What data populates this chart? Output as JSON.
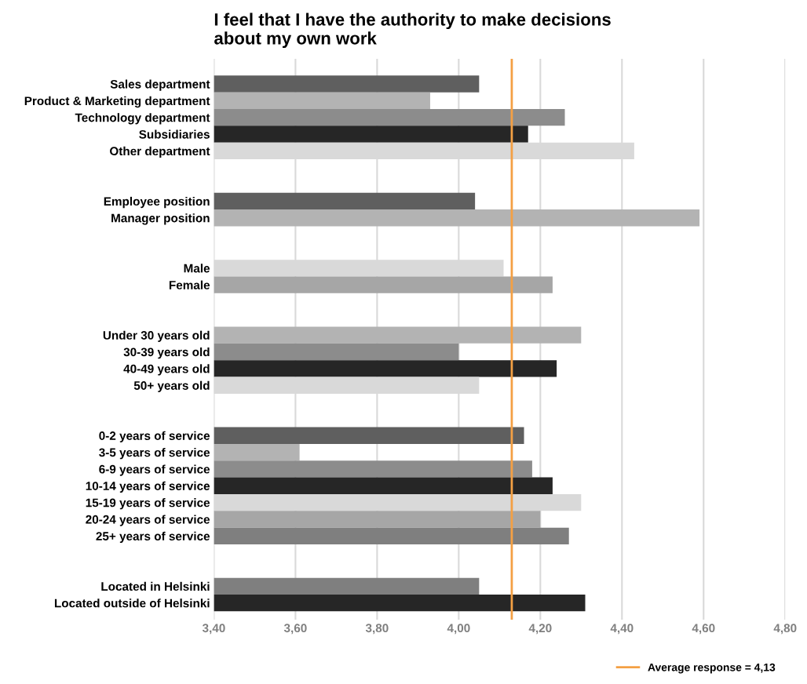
{
  "chart_data": {
    "type": "bar",
    "orientation": "horizontal",
    "title": "I feel that I have the authority to make decisions\nabout my own work",
    "categories": [
      "Sales department",
      "Product & Marketing department",
      "Technology department",
      "Subsidiaries",
      "Other department",
      null,
      null,
      "Employee position",
      "Manager position",
      null,
      null,
      "Male",
      "Female",
      null,
      null,
      "Under 30 years old",
      "30-39 years old",
      "40-49 years old",
      "50+ years old",
      null,
      null,
      "0-2 years of service",
      "3-5 years of service",
      "6-9 years of service",
      "10-14 years of service",
      "15-19 years of service",
      "20-24 years of service",
      "25+ years of service",
      null,
      null,
      "Located in Helsinki",
      "Located outside of Helsinki"
    ],
    "values": [
      4.05,
      3.93,
      4.26,
      4.17,
      4.43,
      null,
      null,
      4.04,
      4.59,
      null,
      null,
      4.11,
      4.23,
      null,
      null,
      4.3,
      4.0,
      4.24,
      4.05,
      null,
      null,
      4.16,
      3.61,
      4.18,
      4.23,
      4.3,
      4.2,
      4.27,
      null,
      null,
      4.05,
      4.31
    ],
    "colors": [
      "#5f5f5f",
      "#b3b3b3",
      "#8c8c8c",
      "#262626",
      "#d9d9d9",
      null,
      null,
      "#5f5f5f",
      "#b3b3b3",
      null,
      null,
      "#d9d9d9",
      "#a6a6a6",
      null,
      null,
      "#b3b3b3",
      "#8c8c8c",
      "#262626",
      "#d9d9d9",
      null,
      null,
      "#5f5f5f",
      "#b3b3b3",
      "#8c8c8c",
      "#262626",
      "#d9d9d9",
      "#a6a6a6",
      "#7f7f7f",
      null,
      null,
      "#7f7f7f",
      "#262626"
    ],
    "xlim": [
      3.4,
      4.8
    ],
    "xticks": [
      {
        "value": 3.4,
        "label": "3,40"
      },
      {
        "value": 3.6,
        "label": "3,60"
      },
      {
        "value": 3.8,
        "label": "3,80"
      },
      {
        "value": 4.0,
        "label": "4,00"
      },
      {
        "value": 4.2,
        "label": "4,20"
      },
      {
        "value": 4.4,
        "label": "4,40"
      },
      {
        "value": 4.6,
        "label": "4,60"
      },
      {
        "value": 4.8,
        "label": "4,80"
      }
    ],
    "grid": "x",
    "ref_lines": [
      {
        "axis": "x",
        "value": 4.13,
        "label": "Average response = 4,13",
        "color": "#f4a044"
      }
    ],
    "legend": "bottom right"
  }
}
